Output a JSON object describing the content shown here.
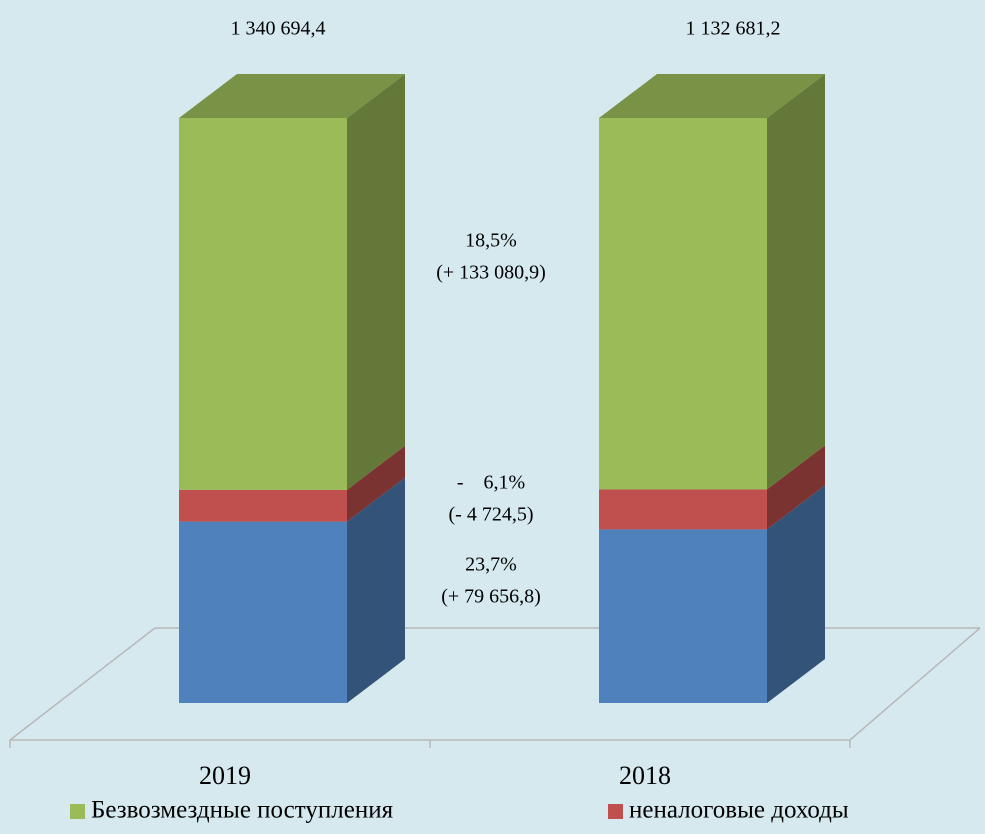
{
  "chart_data": {
    "type": "bar",
    "stacked": "percent",
    "categories": [
      "2019",
      "2018"
    ],
    "totals": [
      1340694.4,
      1132681.2
    ],
    "total_labels": [
      "1 340 694,4",
      "1 132 681,2"
    ],
    "series": [
      {
        "color": "#4f81bd",
        "values": [
          415762,
          336105
        ]
      },
      {
        "name": "неналоговые доходы",
        "color": "#c0504d",
        "values": [
          72727,
          77451
        ]
      },
      {
        "name": "Безвозмездные поступления",
        "color": "#9bbb59",
        "values": [
          852205,
          719125
        ]
      }
    ],
    "annotations": [
      [
        "18,5%",
        "(+ 133 080,9)"
      ],
      [
        "-    6,1%",
        "(- 4 724,5)"
      ],
      [
        "23,7%",
        "(+ 79 656,8)"
      ]
    ]
  }
}
